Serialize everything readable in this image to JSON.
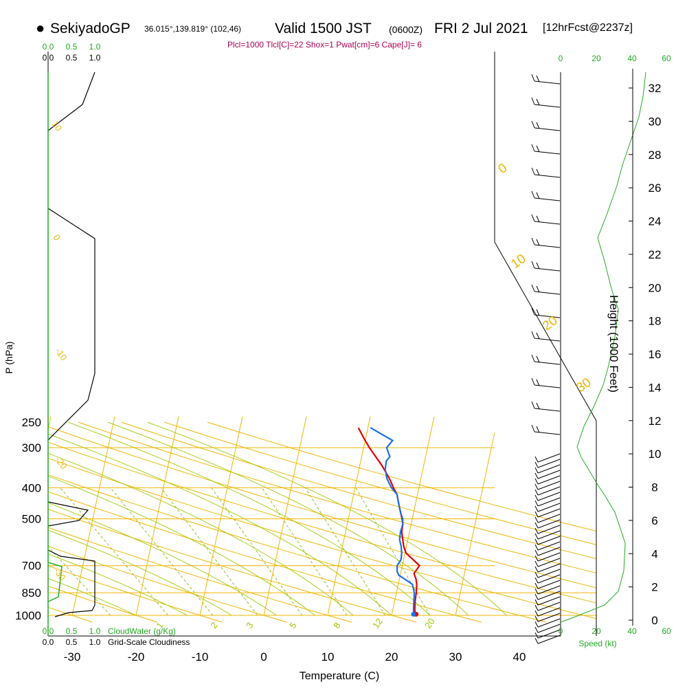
{
  "header": {
    "station": "SekiyadoGP",
    "coords": "36.015°,139.819° (102,46)",
    "valid": "Valid 1500 JST",
    "zulu": "(0600Z)",
    "date": "FRI 2 Jul 2021",
    "fcst": "[12hrFcst@2237z]"
  },
  "indices": "Plcl=1000 Tlcl[C]=22 Shox=1 Pwat[cm]=6 Cape[J]= 6",
  "scales": {
    "cloud_water_ticks": [
      "0.0",
      "0.5",
      "1.0"
    ],
    "cloudiness_ticks": [
      "0.0",
      "0.5",
      "1.0"
    ],
    "cloud_water_label": "CloudWater (g/Kg)",
    "cloudiness_label": "Grid-Scale Cloudiness",
    "speed_ticks": [
      "0",
      "20",
      "40",
      "60"
    ],
    "speed_ticks_black": [
      "0",
      "20",
      "40"
    ],
    "speed_label": "Speed (kt)"
  },
  "colors": {
    "temperature": "#e00000",
    "dewpoint": "#1a6ee8",
    "isotherm": "#f0b400",
    "mixing_ratio": "#90c020",
    "moist_adiabat": "#a0c800",
    "green_text": "#22aa22",
    "indices_text": "#aa0055"
  },
  "chart_data": {
    "type": "line",
    "xlabel": "Temperature (C)",
    "ylabel": "P (hPa)",
    "y2label": "Height (1000 Feet)",
    "x_ticks": [
      -30,
      -20,
      -10,
      0,
      10,
      20,
      30,
      40
    ],
    "pressure_ticks": [
      250,
      300,
      400,
      500,
      700,
      850,
      1000
    ],
    "height_ticks_kft": [
      0,
      2,
      4,
      6,
      8,
      10,
      12,
      14,
      16,
      18,
      20,
      22,
      24,
      26,
      28,
      30,
      32
    ],
    "temperature_axis_range": [
      -35,
      45
    ],
    "pressure_axis_range": [
      250,
      1000
    ],
    "mixing_ratio_labels": [
      "1",
      "2",
      "3",
      "5",
      "8",
      "12",
      "20"
    ],
    "dry_adiabat_labels": [
      "0",
      "10",
      "20",
      "30"
    ],
    "left_margin_labels": [
      "10",
      "0",
      "-10",
      "-20",
      "-30"
    ],
    "series": [
      {
        "name": "Temperature",
        "p": [
          992,
          985,
          950,
          900,
          850,
          800,
          770,
          740,
          700,
          670,
          640,
          610,
          580,
          550,
          520,
          500,
          480,
          460,
          440,
          420,
          400,
          380,
          360,
          340,
          320,
          300,
          280,
          260
        ],
        "t": [
          23.8,
          23.6,
          23.4,
          23.2,
          23.1,
          22.9,
          22.6,
          22.1,
          22.7,
          21.5,
          20.2,
          19.6,
          19.2,
          18.8,
          18.7,
          18.4,
          18.0,
          17.6,
          17.2,
          16.8,
          16.0,
          15.3,
          14.4,
          13.4,
          12.2,
          10.9,
          9.7,
          8.5
        ]
      },
      {
        "name": "Dewpoint",
        "p": [
          992,
          950,
          900,
          850,
          800,
          770,
          750,
          730,
          700,
          670,
          640,
          610,
          580,
          550,
          520,
          500,
          480,
          460,
          440,
          420,
          400,
          375,
          350,
          330,
          320,
          300,
          285,
          260
        ],
        "t": [
          23.4,
          23.2,
          23.0,
          22.8,
          22.2,
          20.8,
          19.8,
          19.4,
          19.2,
          19.6,
          19.5,
          19.2,
          18.7,
          18.6,
          18.7,
          18.5,
          18.0,
          17.6,
          17.2,
          16.8,
          15.7,
          14.7,
          14.1,
          14.0,
          14.4,
          13.6,
          14.3,
          10.4
        ]
      }
    ]
  }
}
